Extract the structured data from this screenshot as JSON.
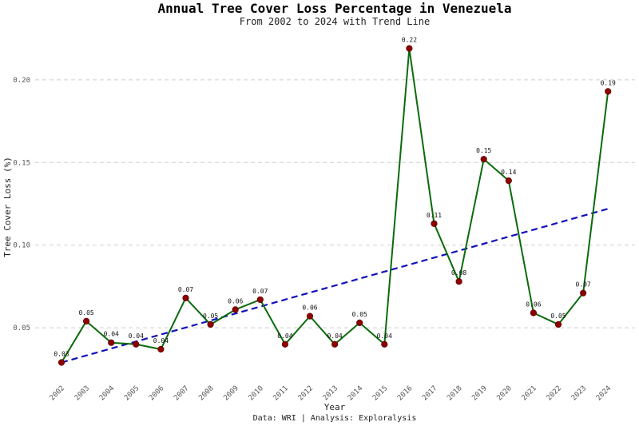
{
  "chart_data": {
    "type": "line",
    "title": "Annual Tree Cover Loss Percentage in Venezuela",
    "subtitle": "From 2002 to 2024 with Trend Line",
    "xlabel": "Year",
    "ylabel": "Tree Cover Loss (%)",
    "caption": "Data: WRI | Analysis: Exploralysis",
    "x": [
      "2002",
      "2003",
      "2004",
      "2005",
      "2006",
      "2007",
      "2008",
      "2009",
      "2010",
      "2011",
      "2012",
      "2013",
      "2014",
      "2015",
      "2016",
      "2017",
      "2018",
      "2019",
      "2020",
      "2021",
      "2022",
      "2023",
      "2024"
    ],
    "values": [
      0.029,
      0.054,
      0.041,
      0.04,
      0.037,
      0.068,
      0.052,
      0.061,
      0.067,
      0.04,
      0.057,
      0.04,
      0.053,
      0.04,
      0.219,
      0.113,
      0.078,
      0.152,
      0.139,
      0.059,
      0.052,
      0.071,
      0.193
    ],
    "data_labels": [
      "0.03",
      "0.05",
      "0.04",
      "0.04",
      "0.04",
      "0.07",
      "0.05",
      "0.06",
      "0.07",
      "0.04",
      "0.06",
      "0.04",
      "0.05",
      "0.04",
      "0.22",
      "0.11",
      "0.08",
      "0.15",
      "0.14",
      "0.06",
      "0.05",
      "0.07",
      "0.19"
    ],
    "trend_line": {
      "start": {
        "x": "2002",
        "y": 0.029
      },
      "end": {
        "x": "2024",
        "y": 0.122
      }
    },
    "yticks": [
      0.05,
      0.1,
      0.15,
      0.2
    ],
    "ytick_labels": [
      "0.05",
      "0.10",
      "0.15",
      "0.20"
    ],
    "ylim": [
      0.022,
      0.228
    ],
    "grid": "horizontal dashed",
    "colors": {
      "line": "#0b6b0b",
      "point": "#8b0000",
      "trend": "#1111bb",
      "grid": "#cfcfcf"
    }
  }
}
